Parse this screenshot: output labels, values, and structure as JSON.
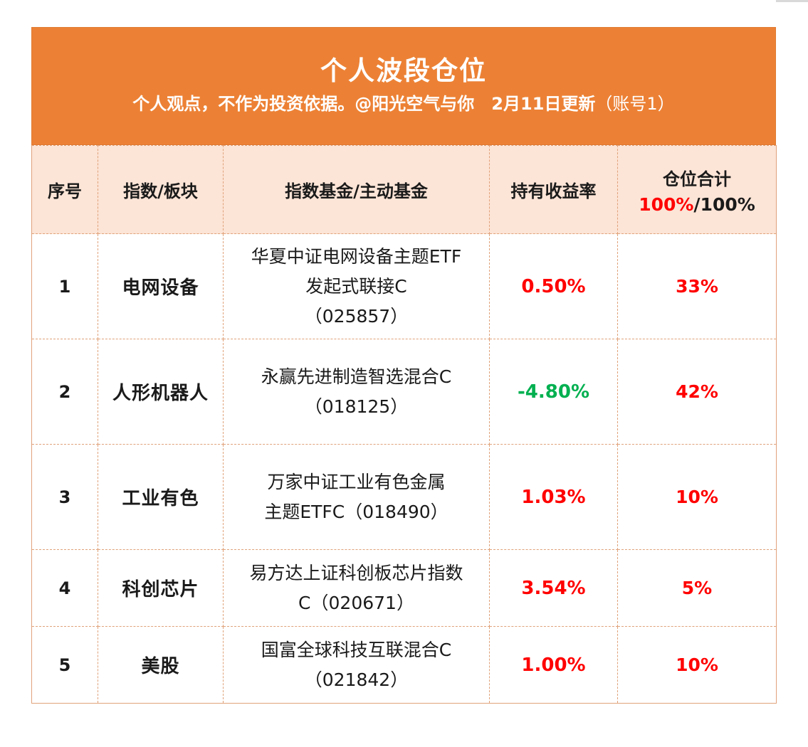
{
  "header": {
    "title": "个人波段仓位",
    "subtitle": "个人观点，不作为投资依据。@阳光空气与你　2月11日更新",
    "account": "（账号1）"
  },
  "columns": {
    "seq": "序号",
    "sector": "指数/板块",
    "fund": "指数基金/主动基金",
    "return": "持有收益率",
    "position": "仓位合计",
    "position_used": "100%",
    "position_sep": "/",
    "position_total": "100%"
  },
  "rows": [
    {
      "seq": "1",
      "sector": "电网设备",
      "fund_lines": [
        "华夏中证电网设备主题ETF",
        "发起式联接C",
        "（025857）"
      ],
      "return": "0.50%",
      "return_color": "#ff0000",
      "position": "33%"
    },
    {
      "seq": "2",
      "sector": "人形机器人",
      "fund_lines": [
        "永赢先进制造智选混合C",
        "（018125）"
      ],
      "return": "-4.80%",
      "return_color": "#00b050",
      "position": "42%"
    },
    {
      "seq": "3",
      "sector": "工业有色",
      "fund_lines": [
        "万家中证工业有色金属",
        "主题ETFC（018490）"
      ],
      "return": "1.03%",
      "return_color": "#ff0000",
      "position": "10%"
    },
    {
      "seq": "4",
      "sector": "科创芯片",
      "fund_lines": [
        "易方达上证科创板芯片指数",
        "C（020671）"
      ],
      "return": "3.54%",
      "return_color": "#ff0000",
      "position": "5%"
    },
    {
      "seq": "5",
      "sector": "美股",
      "fund_lines": [
        "国富全球科技互联混合C",
        "（021842）"
      ],
      "return": "1.00%",
      "return_color": "#ff0000",
      "position": "10%"
    }
  ]
}
